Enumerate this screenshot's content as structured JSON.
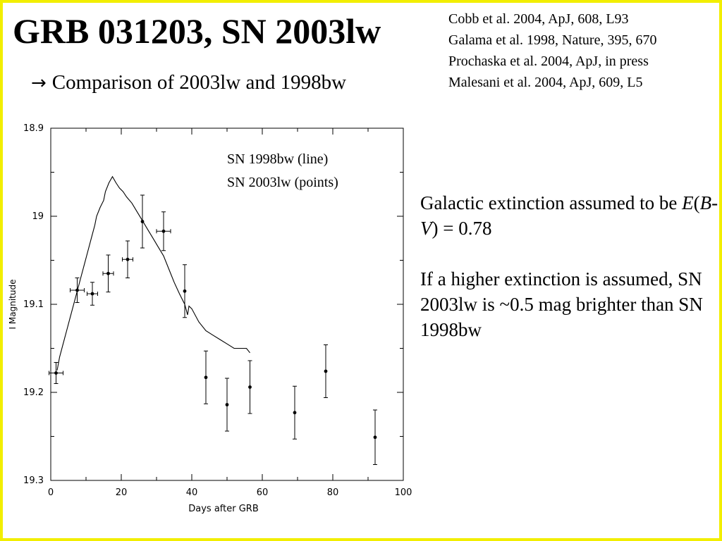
{
  "slide": {
    "title": "GRB 031203, SN 2003lw",
    "subtitle": "Comparison of 2003lw and 1998bw",
    "subtitle_arrow": "→",
    "references": [
      "Cobb et al. 2004, ApJ, 608, L93",
      "Galama et al. 1998, Nature, 395, 670",
      "Prochaska et al. 2004, ApJ, in press",
      "Malesani et al. 2004, ApJ,  609, L5"
    ],
    "notes": {
      "extinction_prefix": "Galactic extinction assumed to be ",
      "extinction_E": "E",
      "extinction_open": "(",
      "extinction_B": "B",
      "extinction_dash": "-",
      "extinction_V": "V",
      "extinction_suffix": ") = 0.78",
      "higher": "If a higher extinction is assumed, SN 2003lw is ~0.5 mag brighter than SN 1998bw"
    },
    "border_color": "#f2ee00"
  },
  "chart_data": {
    "type": "scatter",
    "xlabel": "Days after GRB",
    "ylabel": "I Magnitude",
    "xlim": [
      0,
      100
    ],
    "ylim": [
      18.9,
      19.3
    ],
    "y_inverted": true,
    "grid": false,
    "xticks": [
      0,
      20,
      40,
      60,
      80,
      100
    ],
    "yticks": [
      18.9,
      19.0,
      19.1,
      19.2,
      19.3
    ],
    "ytick_labels": [
      "18.9",
      "19",
      "19.1",
      "19.2",
      "19.3"
    ],
    "legend": [
      "SN 1998bw (line)",
      "SN 2003lw (points)"
    ],
    "legend_position": "top-right",
    "series": [
      {
        "name": "SN 1998bw (line)",
        "style": "line",
        "x": [
          1.8,
          2.5,
          3.5,
          4.5,
          5.5,
          6.5,
          7.5,
          8.5,
          9.5,
          10.5,
          11.5,
          12.5,
          13.0,
          14.0,
          15.0,
          15.5,
          16.5,
          17.5,
          18.5,
          19.5,
          20.5,
          21.5,
          23.0,
          24.5,
          26.0,
          27.5,
          29.0,
          30.5,
          32.0,
          33.5,
          35.0,
          36.5,
          38.0,
          38.8,
          39.2,
          40.0,
          42.0,
          44.0,
          46.0,
          48.0,
          50.0,
          52.0,
          54.0,
          55.5,
          56.5
        ],
        "y": [
          19.175,
          19.16,
          19.145,
          19.13,
          19.115,
          19.1,
          19.085,
          19.07,
          19.055,
          19.04,
          19.025,
          19.01,
          19.0,
          18.99,
          18.982,
          18.972,
          18.962,
          18.955,
          18.962,
          18.968,
          18.972,
          18.978,
          18.985,
          18.995,
          19.005,
          19.015,
          19.025,
          19.035,
          19.045,
          19.06,
          19.075,
          19.088,
          19.1,
          19.112,
          19.102,
          19.105,
          19.12,
          19.13,
          19.135,
          19.14,
          19.145,
          19.15,
          19.15,
          19.15,
          19.155
        ]
      },
      {
        "name": "SN 2003lw (points)",
        "style": "points",
        "x": [
          1.5,
          7.5,
          11.8,
          16.3,
          21.8,
          26.0,
          32.0,
          38.0,
          44.0,
          50.0,
          56.5,
          69.2,
          78.0,
          92.0
        ],
        "y": [
          19.178,
          19.084,
          19.088,
          19.065,
          19.049,
          19.006,
          19.017,
          19.085,
          19.183,
          19.214,
          19.194,
          19.223,
          19.176,
          19.251
        ],
        "yerr": [
          0.012,
          0.014,
          0.013,
          0.021,
          0.021,
          0.03,
          0.022,
          0.03,
          0.03,
          0.03,
          0.03,
          0.03,
          0.03,
          0.031
        ],
        "xerr": [
          2.0,
          2.0,
          1.5,
          1.5,
          1.5,
          0,
          2.0,
          0,
          0,
          0,
          0,
          0,
          0,
          0
        ]
      }
    ]
  }
}
